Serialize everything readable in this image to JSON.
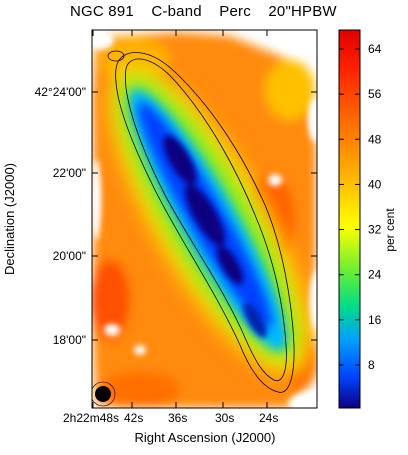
{
  "title": "NGC 891    C-band    Perc    20\"HPBW",
  "axes": {
    "xlabel": "Right Ascension (J2000)",
    "ylabel": "Declination (J2000)",
    "x_ticks": [
      "2h22m48s",
      "42s",
      "36s",
      "30s",
      "24s"
    ],
    "y_ticks": [
      "42°24'00\"",
      "22'00\"",
      "20'00\"",
      "18'00\""
    ]
  },
  "colorbar": {
    "label": "per cent",
    "ticks": [
      "8",
      "16",
      "24",
      "32",
      "40",
      "48",
      "56",
      "64"
    ],
    "colors": [
      "#0d0080",
      "#0040ff",
      "#00a0ff",
      "#00dd88",
      "#66ee33",
      "#ffff00",
      "#ffb000",
      "#ff6000",
      "#ff2000",
      "#e00000"
    ]
  }
}
